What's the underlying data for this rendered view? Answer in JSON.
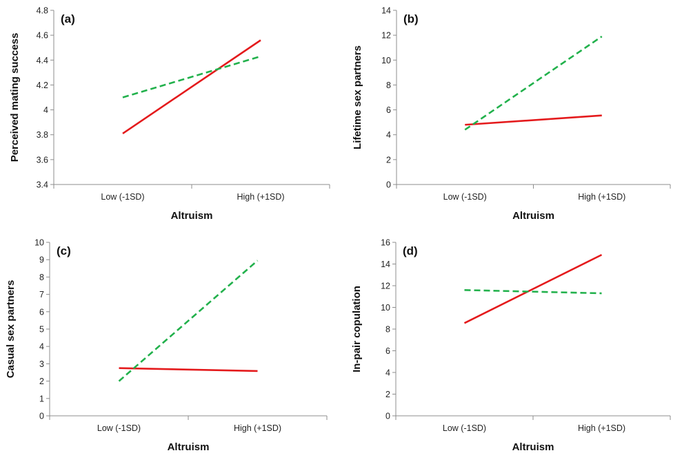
{
  "colors": {
    "series_a": "#e41a1c",
    "series_b": "#22b14c",
    "axis": "#8c8c8c"
  },
  "chart_data": [
    {
      "type": "line",
      "panel_label": "(a)",
      "title": "",
      "xlabel": "Altruism",
      "ylabel": "Perceived mating success",
      "categories": [
        "Low (-1SD)",
        "High (+1SD)"
      ],
      "ylim": [
        3.4,
        4.8
      ],
      "yticks": [
        "3.4",
        "3.6",
        "3.8",
        "4",
        "4.2",
        "4.4",
        "4.6",
        "4.8"
      ],
      "yticks_values": [
        3.4,
        3.6,
        3.8,
        4.0,
        4.2,
        4.4,
        4.6,
        4.8
      ],
      "grid": false,
      "series": [
        {
          "style": "solid",
          "color": "#e41a1c",
          "values": [
            3.81,
            4.56
          ]
        },
        {
          "style": "dashed",
          "color": "#22b14c",
          "values": [
            4.1,
            4.43
          ]
        }
      ]
    },
    {
      "type": "line",
      "panel_label": "(b)",
      "title": "",
      "xlabel": "Altruism",
      "ylabel": "Lifetime sex partners",
      "categories": [
        "Low (-1SD)",
        "High (+1SD)"
      ],
      "ylim": [
        0,
        14
      ],
      "yticks": [
        "0",
        "2",
        "4",
        "6",
        "8",
        "10",
        "12",
        "14"
      ],
      "yticks_values": [
        0,
        2,
        4,
        6,
        8,
        10,
        12,
        14
      ],
      "grid": false,
      "series": [
        {
          "style": "solid",
          "color": "#e41a1c",
          "values": [
            4.8,
            5.55
          ]
        },
        {
          "style": "dashed",
          "color": "#22b14c",
          "values": [
            4.4,
            11.9
          ]
        }
      ]
    },
    {
      "type": "line",
      "panel_label": "(c)",
      "title": "",
      "xlabel": "Altruism",
      "ylabel": "Casual sex partners",
      "categories": [
        "Low (-1SD)",
        "High (+1SD)"
      ],
      "ylim": [
        0,
        10
      ],
      "yticks": [
        "0",
        "1",
        "2",
        "3",
        "4",
        "5",
        "6",
        "7",
        "8",
        "9",
        "10"
      ],
      "yticks_values": [
        0,
        1,
        2,
        3,
        4,
        5,
        6,
        7,
        8,
        9,
        10
      ],
      "grid": false,
      "series": [
        {
          "style": "solid",
          "color": "#e41a1c",
          "values": [
            2.75,
            2.58
          ]
        },
        {
          "style": "dashed",
          "color": "#22b14c",
          "values": [
            2.0,
            8.95
          ]
        }
      ]
    },
    {
      "type": "line",
      "panel_label": "(d)",
      "title": "",
      "xlabel": "Altruism",
      "ylabel": "In-pair copulation",
      "categories": [
        "Low (-1SD)",
        "High (+1SD)"
      ],
      "ylim": [
        0,
        16
      ],
      "yticks": [
        "0",
        "2",
        "4",
        "6",
        "8",
        "10",
        "12",
        "14",
        "16"
      ],
      "yticks_values": [
        0,
        2,
        4,
        6,
        8,
        10,
        12,
        14,
        16
      ],
      "grid": false,
      "series": [
        {
          "style": "solid",
          "color": "#e41a1c",
          "values": [
            8.55,
            14.85
          ]
        },
        {
          "style": "dashed",
          "color": "#22b14c",
          "values": [
            11.6,
            11.3
          ]
        }
      ]
    }
  ]
}
